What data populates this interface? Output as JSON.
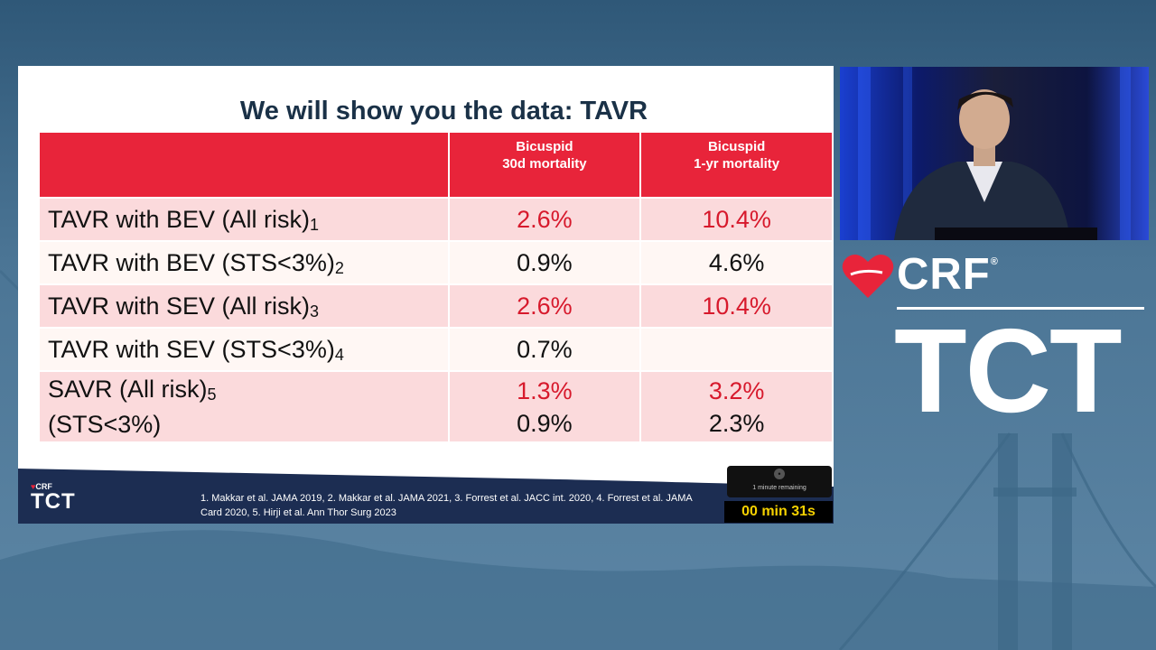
{
  "slide": {
    "title": "We will show you the data: TAVR",
    "table": {
      "headers": [
        {
          "line1": "Bicuspid",
          "line2": "30d mortality"
        },
        {
          "line1": "Bicuspid",
          "line2": "1-yr mortality"
        }
      ],
      "rows": [
        {
          "label": "TAVR with BEV  (All risk)",
          "ref": "1",
          "v30": "2.6%",
          "v1y": "10.4%"
        },
        {
          "label": "TAVR with BEV (STS<3%)",
          "ref": "2",
          "v30": "0.9%",
          "v1y": "4.6%"
        },
        {
          "label": "TAVR with SEV (All risk)",
          "ref": "3",
          "v30": "2.6%",
          "v1y": "10.4%"
        },
        {
          "label": "TAVR with SEV (STS<3%)",
          "ref": "4",
          "v30": "0.7%",
          "v1y": ""
        },
        {
          "label": "SAVR (All risk)",
          "ref": "5",
          "label2": "(STS<3%)",
          "v30": "1.3%",
          "v30b": "0.9%",
          "v1y": "3.2%",
          "v1yb": "2.3%"
        }
      ]
    },
    "footer": {
      "logo_crf": "CRF",
      "logo_tct": "TCT",
      "references_line1": "1. Makkar et al. JAMA 2019, 2. Makkar et al. JAMA 2021, 3. Forrest et al. JACC int. 2020, 4. Forrest et al. JAMA",
      "references_line2": "Card 2020, 5. Hirji et al. Ann Thor Surg 2023"
    },
    "timer": {
      "notice": "1 minute remaining",
      "countdown": "00 min 31s"
    }
  },
  "branding": {
    "crf": "CRF",
    "registered": "®",
    "tct": "TCT"
  },
  "colors": {
    "header_red": "#e8243a",
    "value_red": "#d7192c",
    "timer_yellow": "#f5d100",
    "title_navy": "#1a3147"
  }
}
